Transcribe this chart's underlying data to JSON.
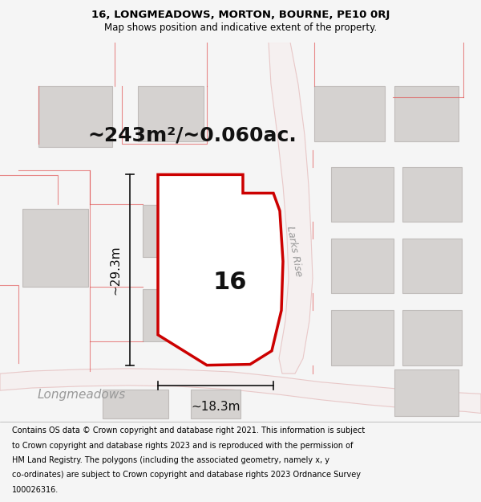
{
  "title_line1": "16, LONGMEADOWS, MORTON, BOURNE, PE10 0RJ",
  "title_line2": "Map shows position and indicative extent of the property.",
  "area_text": "~243m²/~0.060ac.",
  "label_16": "16",
  "label_width": "~18.3m",
  "label_height": "~29.3m",
  "road_label": "Larks Rise",
  "road_label2": "Longmeadows",
  "footer_lines": [
    "Contains OS data © Crown copyright and database right 2021. This information is subject",
    "to Crown copyright and database rights 2023 and is reproduced with the permission of",
    "HM Land Registry. The polygons (including the associated geometry, namely x, y",
    "co-ordinates) are subject to Crown copyright and database rights 2023 Ordnance Survey",
    "100026316."
  ],
  "bg_color": "#f5f5f5",
  "map_bg": "#efedec",
  "plot_fill": "#ffffff",
  "plot_stroke": "#cc0000",
  "road_light": "#f5f0f0",
  "road_edge": "#e8c8c8",
  "building_fill": "#d5d2d0",
  "building_edge": "#c0bcba",
  "red_line": "#e05050",
  "dim_color": "#111111",
  "road_text": "#999999"
}
